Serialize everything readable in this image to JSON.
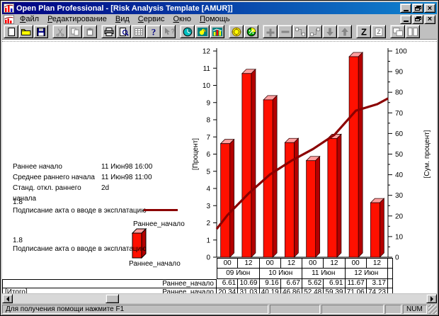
{
  "window": {
    "title": "Open Plan Professional - [Risk Analysis Template [AMUR]]",
    "statusbar_message": "Для получения помощи нажмите F1",
    "statusbar_num": "NUM"
  },
  "menubar": {
    "items": [
      {
        "label": "Файл"
      },
      {
        "label": "Редактирование"
      },
      {
        "label": "Вид"
      },
      {
        "label": "Сервис"
      },
      {
        "label": "Окно"
      },
      {
        "label": "Помощь"
      }
    ]
  },
  "toolbar": {
    "glyphs": {
      "help": "?",
      "z": "Z"
    },
    "groups": [
      3,
      3,
      5,
      3,
      2,
      6,
      2,
      2
    ],
    "buttons": [
      {
        "name": "new-document",
        "icon": "page",
        "enabled": true
      },
      {
        "name": "open-file",
        "icon": "folder",
        "enabled": true
      },
      {
        "name": "save",
        "icon": "floppy",
        "enabled": true
      },
      {
        "name": "cut",
        "icon": "scissors",
        "enabled": false
      },
      {
        "name": "copy",
        "icon": "copy",
        "enabled": false
      },
      {
        "name": "paste",
        "icon": "clipboard",
        "enabled": false
      },
      {
        "name": "print",
        "icon": "printer",
        "enabled": true
      },
      {
        "name": "print-preview",
        "icon": "preview",
        "enabled": true
      },
      {
        "name": "edit-table",
        "icon": "grid",
        "enabled": false
      },
      {
        "name": "help",
        "icon": "question",
        "enabled": true
      },
      {
        "name": "context-help",
        "icon": "arrow-question",
        "enabled": false
      },
      {
        "name": "time-analysis",
        "icon": "clock",
        "enabled": true
      },
      {
        "name": "resource-analysis",
        "icon": "bird",
        "enabled": true
      },
      {
        "name": "risk-analysis",
        "icon": "bar-chart",
        "enabled": true
      },
      {
        "name": "cost-analysis",
        "icon": "coin",
        "enabled": true
      },
      {
        "name": "percent-complete",
        "icon": "percent",
        "enabled": true
      },
      {
        "name": "add-activity",
        "icon": "plus",
        "enabled": false
      },
      {
        "name": "delete-activity",
        "icon": "minus",
        "enabled": false
      },
      {
        "name": "link-activities",
        "icon": "link",
        "enabled": false
      },
      {
        "name": "unlink-activities",
        "icon": "unlink",
        "enabled": false
      },
      {
        "name": "move-down",
        "icon": "arrow-down",
        "enabled": false
      },
      {
        "name": "move-up",
        "icon": "arrow-up",
        "enabled": false
      },
      {
        "name": "sort",
        "icon": "letter-z",
        "enabled": true
      },
      {
        "name": "sort-report",
        "icon": "z-page",
        "enabled": false
      },
      {
        "name": "cascade-windows",
        "icon": "cascade",
        "enabled": false
      },
      {
        "name": "tile-windows",
        "icon": "tile",
        "enabled": false
      }
    ]
  },
  "info_panel": {
    "rows": [
      {
        "label": "Раннее начало",
        "value": "11 Июн98 16:00"
      },
      {
        "label": "Среднее раннего начала",
        "value": "11 Июн98 11:00"
      },
      {
        "label": "Станд. откл.  раннего начала",
        "value": "2d"
      }
    ]
  },
  "legends": {
    "line": {
      "value": "1.8",
      "desc": "Подписание акта о вводе в эксплатацию",
      "series": "Раннее_начало"
    },
    "bar": {
      "value": "1.8",
      "desc": "Подписание акта о вводе в эксплатацию",
      "series": "Раннее_начало"
    }
  },
  "chart_data": {
    "type": "bar",
    "title": "",
    "categories_hours": [
      "00",
      "12",
      "00",
      "12",
      "00",
      "12",
      "00",
      "12"
    ],
    "categories_dates": [
      "09 Июн",
      "10 Июн",
      "11 Июн",
      "12 Июн"
    ],
    "series": [
      {
        "name": "Раннее_начало",
        "type": "bar",
        "axis": "left",
        "values": [
          6.61,
          10.69,
          9.16,
          6.67,
          5.62,
          6.91,
          11.67,
          3.17
        ]
      },
      {
        "name": "Раннее_начало",
        "type": "line",
        "axis": "right",
        "values": [
          20.34,
          31.03,
          40.19,
          46.86,
          52.48,
          59.39,
          71.06,
          74.23
        ],
        "edge_start": 13.7,
        "edge_end": 77
      }
    ],
    "left_axis": {
      "label": "[Процент]",
      "min": 0,
      "max": 12,
      "step": 1
    },
    "right_axis": {
      "label": "[Сум. процент]",
      "min": 0,
      "max": 100,
      "step": 10
    },
    "colors": {
      "bar_front": "#ff1000",
      "bar_top": "#ffa0a0",
      "bar_side": "#b40000",
      "line": "#8b0000"
    },
    "grid": false,
    "legend_position": "left"
  },
  "bottom_table": {
    "bar_row_label": "Раннее_начало",
    "cum_row_label": "Раннее_начало",
    "total_label": "[Итого]"
  }
}
